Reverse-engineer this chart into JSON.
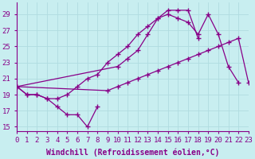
{
  "background_color": "#c8eef0",
  "grid_color": "#b0dce0",
  "line_color": "#880088",
  "marker": "+",
  "markersize": 4,
  "linewidth": 0.9,
  "xlabel": "Windchill (Refroidissement éolien,°C)",
  "xlim": [
    0,
    23
  ],
  "ylim": [
    14.5,
    30.5
  ],
  "xticks": [
    0,
    1,
    2,
    3,
    4,
    5,
    6,
    7,
    8,
    9,
    10,
    11,
    12,
    13,
    14,
    15,
    16,
    17,
    18,
    19,
    20,
    21,
    22,
    23
  ],
  "yticks": [
    15,
    17,
    19,
    21,
    23,
    25,
    27,
    29
  ],
  "tick_fontsize": 6.5,
  "xlabel_fontsize": 7,
  "curves": [
    {
      "x": [
        0,
        1,
        2,
        3,
        4,
        5,
        6,
        7,
        8
      ],
      "y": [
        20.0,
        19.0,
        19.0,
        18.5,
        17.5,
        16.5,
        16.5,
        15.0,
        17.5
      ]
    },
    {
      "x": [
        0,
        1,
        2,
        3,
        4,
        5,
        6,
        7,
        8,
        9,
        10,
        11,
        12,
        13,
        14,
        15,
        16,
        17,
        18
      ],
      "y": [
        20.0,
        19.0,
        19.0,
        18.5,
        18.5,
        19.0,
        20.0,
        21.0,
        21.5,
        23.0,
        24.0,
        25.0,
        26.5,
        27.5,
        28.5,
        29.5,
        29.5,
        29.5,
        26.0
      ]
    },
    {
      "x": [
        0,
        10,
        11,
        12,
        13,
        14,
        15,
        16,
        17,
        18,
        19,
        20,
        21,
        22
      ],
      "y": [
        20.0,
        22.5,
        23.5,
        24.5,
        26.5,
        28.5,
        29.0,
        28.5,
        28.0,
        26.5,
        29.0,
        26.5,
        22.5,
        20.5
      ]
    },
    {
      "x": [
        0,
        9,
        10,
        11,
        12,
        13,
        14,
        15,
        16,
        17,
        18,
        19,
        20,
        21,
        22,
        23
      ],
      "y": [
        20.0,
        19.5,
        20.0,
        20.5,
        21.0,
        21.5,
        22.0,
        22.5,
        23.0,
        23.5,
        24.0,
        24.5,
        25.0,
        25.5,
        26.0,
        20.5
      ]
    }
  ]
}
